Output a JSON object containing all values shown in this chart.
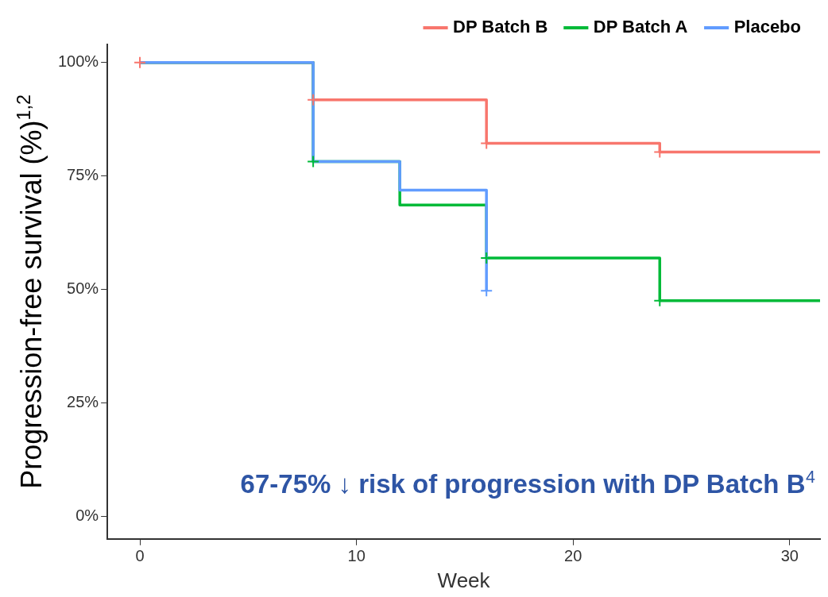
{
  "chart_data": {
    "type": "step",
    "xlabel": "Week",
    "ylabel": "Progression-free survival (%)$^{1,2}$",
    "xlim": [
      -1.5,
      31.4
    ],
    "xticks": [
      0,
      10,
      20,
      30
    ],
    "ylim": [
      -5,
      104
    ],
    "yticks": [
      {
        "value": 0,
        "label": "0%"
      },
      {
        "value": 25,
        "label": "25%"
      },
      {
        "value": 50,
        "label": "50%"
      },
      {
        "value": 75,
        "label": "75%"
      },
      {
        "value": 100,
        "label": "100%"
      }
    ],
    "grid": false,
    "legend": "top",
    "line_style": "solid",
    "series": [
      {
        "name": "DP Batch B",
        "color": "#f8766d",
        "marker": "none",
        "x": [
          0,
          8,
          16,
          24,
          31.4
        ],
        "values": [
          100,
          91.8,
          82.2,
          80.3,
          80.3
        ]
      },
      {
        "name": "DP Batch A",
        "color": "#00ba38",
        "marker": "none",
        "x": [
          0,
          8,
          12,
          16,
          24,
          31.4
        ],
        "values": [
          100,
          78.2,
          68.6,
          56.9,
          47.5,
          47.5
        ]
      },
      {
        "name": "Placebo",
        "color": "#619cff",
        "marker": "none",
        "x": [
          0,
          8,
          12,
          16
        ],
        "values": [
          100,
          78.2,
          71.9,
          49.7
        ]
      },
      {
        "type": "scatter",
        "color": "#f8766d",
        "marker": "cross",
        "x": [
          0,
          8,
          16,
          24
        ],
        "values": [
          100,
          91.8,
          82.2,
          80.3
        ]
      },
      {
        "type": "scatter",
        "color": "#00ba38",
        "marker": "cross",
        "x": [
          8,
          16,
          24
        ],
        "values": [
          78.2,
          56.9,
          47.5
        ]
      },
      {
        "type": "scatter",
        "color": "#619cff",
        "marker": "cross",
        "x": [
          16
        ],
        "values": [
          49.7
        ]
      }
    ],
    "annotations": [
      "67-75% ↓ risk of progression with DP Batch B$^{4}$"
    ]
  }
}
